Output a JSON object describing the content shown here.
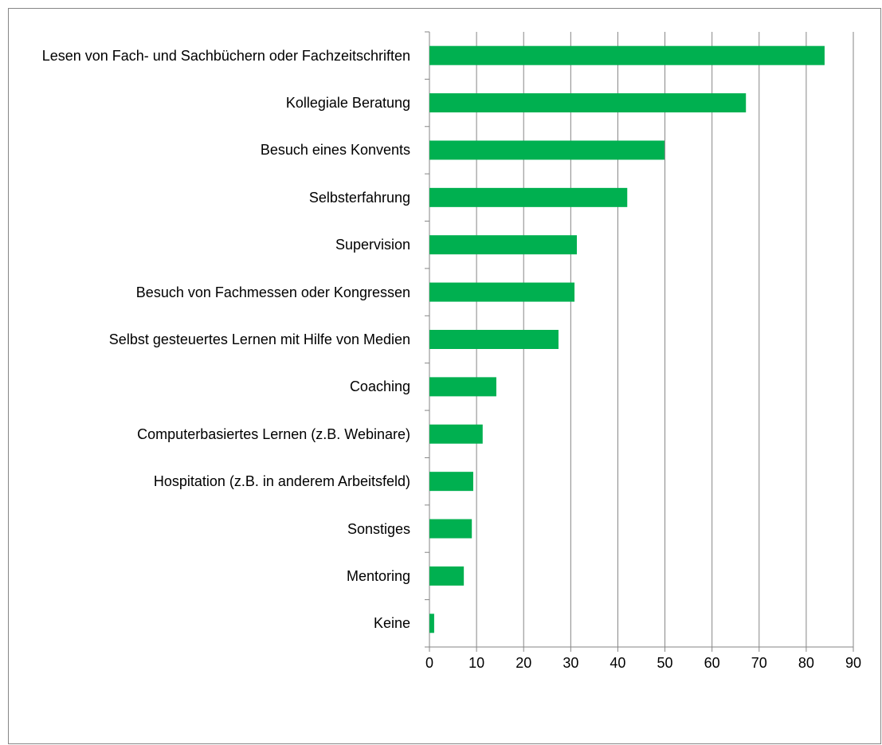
{
  "chart_data": {
    "type": "barh",
    "categories": [
      "Lesen von Fach- und Sachbüchern oder Fachzeitschriften",
      "Kollegiale Beratung",
      "Besuch eines Konvents",
      "Selbsterfahrung",
      "Supervision",
      "Besuch von Fachmessen oder Kongressen",
      "Selbst gesteuertes Lernen mit Hilfe von Medien",
      "Coaching",
      "Computerbasiertes Lernen (z.B. Webinare)",
      "Hospitation (z.B. in anderem Arbeitsfeld)",
      "Sonstiges",
      "Mentoring",
      "Keine"
    ],
    "values": [
      83.9,
      67.2,
      49.9,
      42,
      31.3,
      30.8,
      27.4,
      14.2,
      11.3,
      9.3,
      9,
      7.3,
      1
    ],
    "color": "#00b050",
    "xlim": [
      0,
      90
    ],
    "xticks": [
      0,
      10,
      20,
      30,
      40,
      50,
      60,
      70,
      80,
      90
    ],
    "grid": true
  }
}
